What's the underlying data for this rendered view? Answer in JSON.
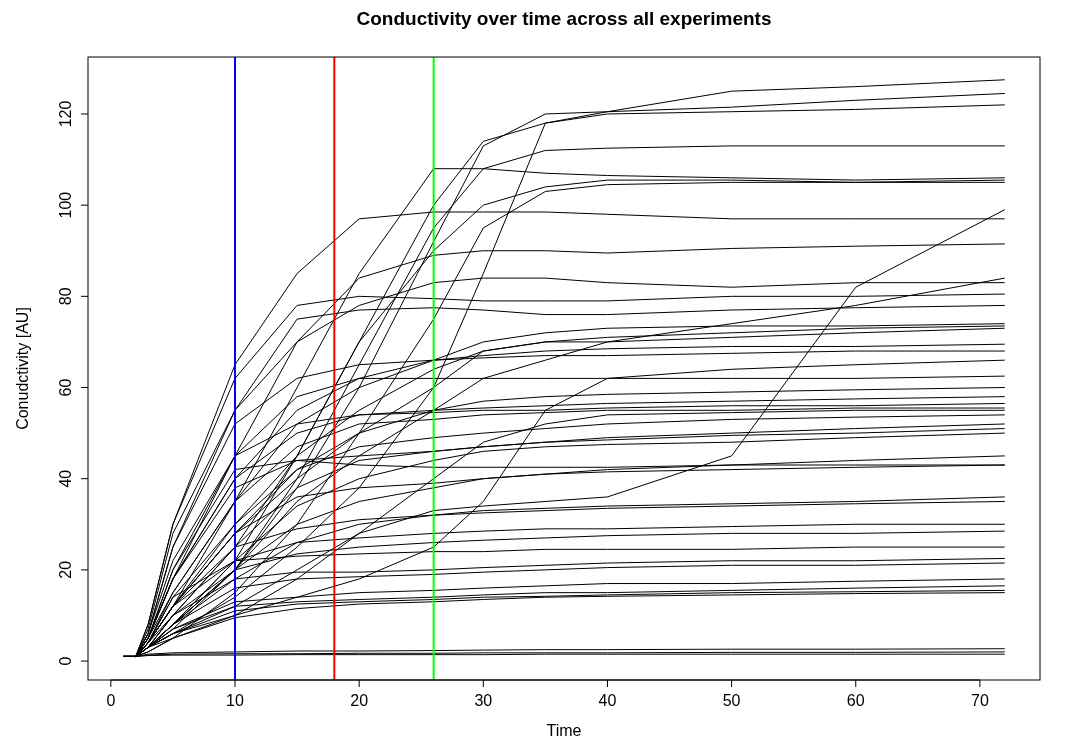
{
  "chart_data": {
    "type": "line",
    "title": "Conductivity over time across all experiments",
    "xlabel": "Time",
    "ylabel": "Conudctivity [AU]",
    "x": [
      1,
      2,
      3,
      5,
      10,
      15,
      20,
      26,
      30,
      35,
      40,
      50,
      60,
      72
    ],
    "xlim": [
      -1.84,
      74.84
    ],
    "ylim": [
      -4.16,
      132.5
    ],
    "xticks": [
      0,
      10,
      20,
      30,
      40,
      50,
      60,
      70
    ],
    "yticks": [
      0,
      20,
      40,
      60,
      80,
      100,
      120
    ],
    "ref_lines": [
      {
        "axis": "x",
        "value": 10,
        "color": "#0000ff"
      },
      {
        "axis": "x",
        "value": 18,
        "color": "#ff0000"
      },
      {
        "axis": "x",
        "value": 26,
        "color": "#00ff00"
      }
    ],
    "series": [
      {
        "color": "#000000",
        "values": [
          1,
          1,
          3,
          7,
          20,
          38,
          60,
          92,
          113,
          120,
          120.5,
          125,
          126,
          127.5
        ]
      },
      {
        "color": "#000000",
        "values": [
          1,
          1,
          4,
          10,
          25,
          45,
          70,
          100,
          114,
          118,
          120.5,
          121.5,
          123,
          124.5
        ]
      },
      {
        "color": "#000000",
        "values": [
          1,
          1,
          3,
          6,
          14,
          25,
          38,
          60,
          85,
          118,
          120,
          120.5,
          121,
          122
        ]
      },
      {
        "color": "#000000",
        "values": [
          1,
          1,
          3,
          8,
          20,
          40,
          65,
          95,
          108,
          112,
          112.5,
          113,
          113,
          113
        ]
      },
      {
        "color": "#000000",
        "values": [
          1,
          1,
          4,
          12,
          35,
          60,
          85,
          108,
          108,
          107,
          106.5,
          106,
          105.5,
          106
        ]
      },
      {
        "color": "#000000",
        "values": [
          1,
          1,
          8,
          30,
          65,
          85,
          97,
          98.5,
          98.5,
          98.5,
          98,
          97,
          97,
          97
        ]
      },
      {
        "color": "#000000",
        "values": [
          1,
          1,
          3,
          8,
          22,
          45,
          70,
          90,
          100,
          104,
          105.5,
          105.5,
          105,
          105
        ]
      },
      {
        "color": "#000000",
        "values": [
          1,
          1,
          2,
          5,
          15,
          30,
          50,
          75,
          95,
          103,
          104.5,
          105,
          105,
          105.5
        ]
      },
      {
        "color": "#000000",
        "values": [
          1,
          1,
          5,
          18,
          45,
          70,
          84,
          89,
          90,
          90,
          89.5,
          90.5,
          91,
          91.5
        ]
      },
      {
        "color": "#000000",
        "values": [
          1,
          1,
          3,
          6,
          12,
          20,
          28,
          33,
          34,
          35,
          36,
          45,
          82,
          99
        ]
      },
      {
        "color": "#000000",
        "values": [
          1,
          1,
          3,
          8,
          20,
          35,
          45,
          55,
          62,
          66,
          70,
          74,
          78,
          84
        ]
      },
      {
        "color": "#000000",
        "values": [
          1,
          1,
          6,
          25,
          55,
          70,
          78,
          83,
          84,
          84,
          83,
          82,
          83,
          83
        ]
      },
      {
        "color": "#000000",
        "values": [
          1,
          1,
          8,
          30,
          62,
          78,
          80,
          79.5,
          79,
          79,
          79,
          80,
          80,
          80.5
        ]
      },
      {
        "color": "#000000",
        "values": [
          1,
          1,
          7,
          28,
          55,
          75,
          77,
          77.5,
          77,
          76,
          76,
          77,
          77.5,
          78
        ]
      },
      {
        "color": "#000000",
        "values": [
          1,
          1,
          5,
          15,
          35,
          52,
          60,
          66,
          70,
          72,
          73,
          73.5,
          73.5,
          74
        ]
      },
      {
        "color": "#000000",
        "values": [
          1,
          1,
          4,
          12,
          30,
          45,
          55,
          64,
          68,
          70,
          71,
          72,
          73,
          73.5
        ]
      },
      {
        "color": "#000000",
        "values": [
          1,
          1,
          4,
          12,
          28,
          40,
          50,
          60,
          68,
          70,
          70,
          71,
          72,
          73
        ]
      },
      {
        "color": "#000000",
        "values": [
          1,
          1,
          5,
          18,
          40,
          55,
          62,
          66,
          67,
          68,
          68.5,
          69,
          69,
          69.5
        ]
      },
      {
        "color": "#000000",
        "values": [
          1,
          1,
          6,
          25,
          52,
          62,
          65,
          66,
          66.5,
          67,
          67,
          67.5,
          68,
          68
        ]
      },
      {
        "color": "#000000",
        "values": [
          1,
          1,
          3,
          6,
          10,
          14,
          18,
          25,
          35,
          55,
          62,
          64,
          65,
          66
        ]
      },
      {
        "color": "#000000",
        "values": [
          1,
          1,
          5,
          20,
          45,
          58,
          62,
          62,
          62,
          62,
          62,
          62,
          62,
          62.5
        ]
      },
      {
        "color": "#000000",
        "values": [
          1,
          1,
          4,
          12,
          28,
          42,
          50,
          55,
          57,
          58,
          58.5,
          59,
          59.5,
          60
        ]
      },
      {
        "color": "#000000",
        "values": [
          1,
          1,
          5,
          18,
          40,
          50,
          54,
          55,
          55.5,
          56,
          56.5,
          57,
          57.5,
          58
        ]
      },
      {
        "color": "#000000",
        "values": [
          1,
          1,
          6,
          22,
          45,
          52,
          54,
          54.5,
          55,
          55,
          55.5,
          56,
          56,
          56.5
        ]
      },
      {
        "color": "#000000",
        "values": [
          1,
          1,
          4,
          15,
          35,
          47,
          52,
          53,
          54,
          54.5,
          55,
          55,
          55.5,
          55.5
        ]
      },
      {
        "color": "#000000",
        "values": [
          1,
          1,
          3,
          5,
          10,
          18,
          28,
          40,
          48,
          52,
          54,
          54.5,
          55,
          55
        ]
      },
      {
        "color": "#000000",
        "values": [
          1,
          1,
          4,
          14,
          30,
          42,
          47,
          49,
          50,
          51,
          52,
          53,
          53.5,
          54
        ]
      },
      {
        "color": "#000000",
        "values": [
          1,
          1,
          5,
          18,
          38,
          44,
          45,
          46,
          47,
          48,
          49,
          50,
          51,
          52
        ]
      },
      {
        "color": "#000000",
        "values": [
          1,
          1,
          3,
          10,
          25,
          38,
          44,
          46,
          47,
          48,
          48.5,
          49.5,
          50,
          51
        ]
      },
      {
        "color": "#000000",
        "values": [
          1,
          1,
          3,
          8,
          22,
          34,
          40,
          44,
          46,
          47,
          47.5,
          48,
          49,
          50
        ]
      },
      {
        "color": "#000000",
        "values": [
          1,
          1,
          4,
          12,
          28,
          36,
          38,
          39,
          40,
          41,
          42,
          43,
          44,
          45
        ]
      },
      {
        "color": "#000000",
        "values": [
          1,
          1,
          5,
          20,
          42,
          44,
          43,
          42.5,
          42.5,
          42.5,
          42.5,
          43,
          43,
          43
        ]
      },
      {
        "color": "#000000",
        "values": [
          1,
          1,
          3,
          8,
          20,
          30,
          35,
          38,
          40,
          41,
          41.5,
          42,
          42.5,
          43
        ]
      },
      {
        "color": "#000000",
        "values": [
          1,
          1,
          3,
          8,
          18,
          26,
          30,
          32,
          33,
          33.5,
          34,
          34.5,
          35,
          36
        ]
      },
      {
        "color": "#000000",
        "values": [
          1,
          1,
          4,
          12,
          25,
          29,
          31,
          32,
          32.5,
          33,
          33.5,
          34,
          34.5,
          35
        ]
      },
      {
        "color": "#000000",
        "values": [
          1,
          1,
          4,
          12,
          22,
          26,
          27,
          28,
          28.5,
          29,
          29,
          29.5,
          30,
          30
        ]
      },
      {
        "color": "#000000",
        "values": [
          1,
          1,
          3,
          10,
          20,
          23.5,
          25,
          26,
          26.5,
          27,
          27.5,
          28,
          28,
          28.5
        ]
      },
      {
        "color": "#000000",
        "values": [
          1,
          1,
          4,
          14,
          22,
          23,
          23.5,
          24,
          24,
          24.5,
          24.5,
          24.5,
          25,
          25
        ]
      },
      {
        "color": "#000000",
        "values": [
          1,
          1,
          3,
          10,
          18,
          19.5,
          19.5,
          20,
          20.5,
          21,
          21.5,
          22,
          22,
          22.5
        ]
      },
      {
        "color": "#000000",
        "values": [
          1,
          1,
          3,
          8,
          16,
          18,
          18.5,
          19,
          19.5,
          20,
          20.5,
          21,
          21,
          21.5
        ]
      },
      {
        "color": "#000000",
        "values": [
          1,
          1,
          3,
          7,
          13,
          14,
          15,
          15.5,
          16,
          16.5,
          17,
          17,
          17.5,
          18
        ]
      },
      {
        "color": "#000000",
        "values": [
          1,
          1,
          3,
          7,
          12,
          13,
          13.5,
          14,
          14.5,
          15,
          15,
          15.5,
          16,
          16.5
        ]
      },
      {
        "color": "#000000",
        "values": [
          1,
          1,
          3,
          6,
          11,
          12.5,
          13,
          13.5,
          14,
          14.2,
          14.5,
          15,
          15.2,
          15.5
        ]
      },
      {
        "color": "#000000",
        "values": [
          1,
          1,
          2,
          5,
          9.5,
          11.5,
          12.5,
          13,
          13.5,
          14,
          14.2,
          14.5,
          14.8,
          15
        ]
      },
      {
        "color": "#000000",
        "values": [
          1,
          1,
          1.5,
          1.8,
          2,
          2.2,
          2.2,
          2.3,
          2.4,
          2.5,
          2.5,
          2.6,
          2.6,
          2.7
        ]
      },
      {
        "color": "#000000",
        "values": [
          1,
          1,
          1.3,
          1.5,
          1.6,
          1.6,
          1.7,
          1.7,
          1.8,
          1.8,
          1.8,
          1.9,
          1.9,
          2
        ]
      },
      {
        "color": "#000000",
        "values": [
          1,
          1,
          1.2,
          1.3,
          1.3,
          1.4,
          1.4,
          1.4,
          1.4,
          1.5,
          1.5,
          1.5,
          1.5,
          1.5
        ]
      }
    ]
  }
}
